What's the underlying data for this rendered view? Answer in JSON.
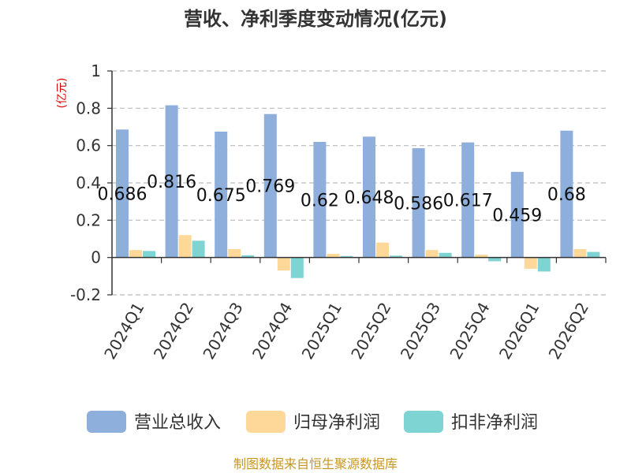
{
  "chart_data": {
    "type": "bar",
    "title": "营收、净利季度变动情况(亿元)",
    "unit_label": "(亿元)",
    "categories": [
      "2024Q1",
      "2024Q2",
      "2024Q3",
      "2024Q4",
      "2025Q1",
      "2025Q2",
      "2025Q3",
      "2025Q4",
      "2026Q1",
      "2026Q2"
    ],
    "series": [
      {
        "name": "营业总收入",
        "color": "#8eaedc",
        "values": [
          0.686,
          0.816,
          0.675,
          0.769,
          0.62,
          0.648,
          0.586,
          0.617,
          0.459,
          0.68
        ]
      },
      {
        "name": "归母净利润",
        "color": "#fdd898",
        "values": [
          0.04,
          0.12,
          0.045,
          -0.07,
          0.02,
          0.08,
          0.04,
          0.015,
          -0.06,
          0.045
        ]
      },
      {
        "name": "扣非净利润",
        "color": "#7ed3d3",
        "values": [
          0.035,
          0.09,
          0.012,
          -0.11,
          0.008,
          0.01,
          0.025,
          -0.02,
          -0.075,
          0.03
        ]
      }
    ],
    "data_labels": [
      "0.686",
      "0.816",
      "0.675",
      "0.769",
      "0.62",
      "0.648",
      "0.586",
      "0.617",
      "0.459",
      "0.68"
    ],
    "ylim": [
      -0.2,
      1
    ],
    "yticks": [
      "-0.2",
      "0",
      "0.2",
      "0.4",
      "0.6",
      "0.8",
      "1"
    ],
    "grid": true,
    "legend_position": "bottom"
  },
  "source": "制图数据来自恒生聚源数据库"
}
